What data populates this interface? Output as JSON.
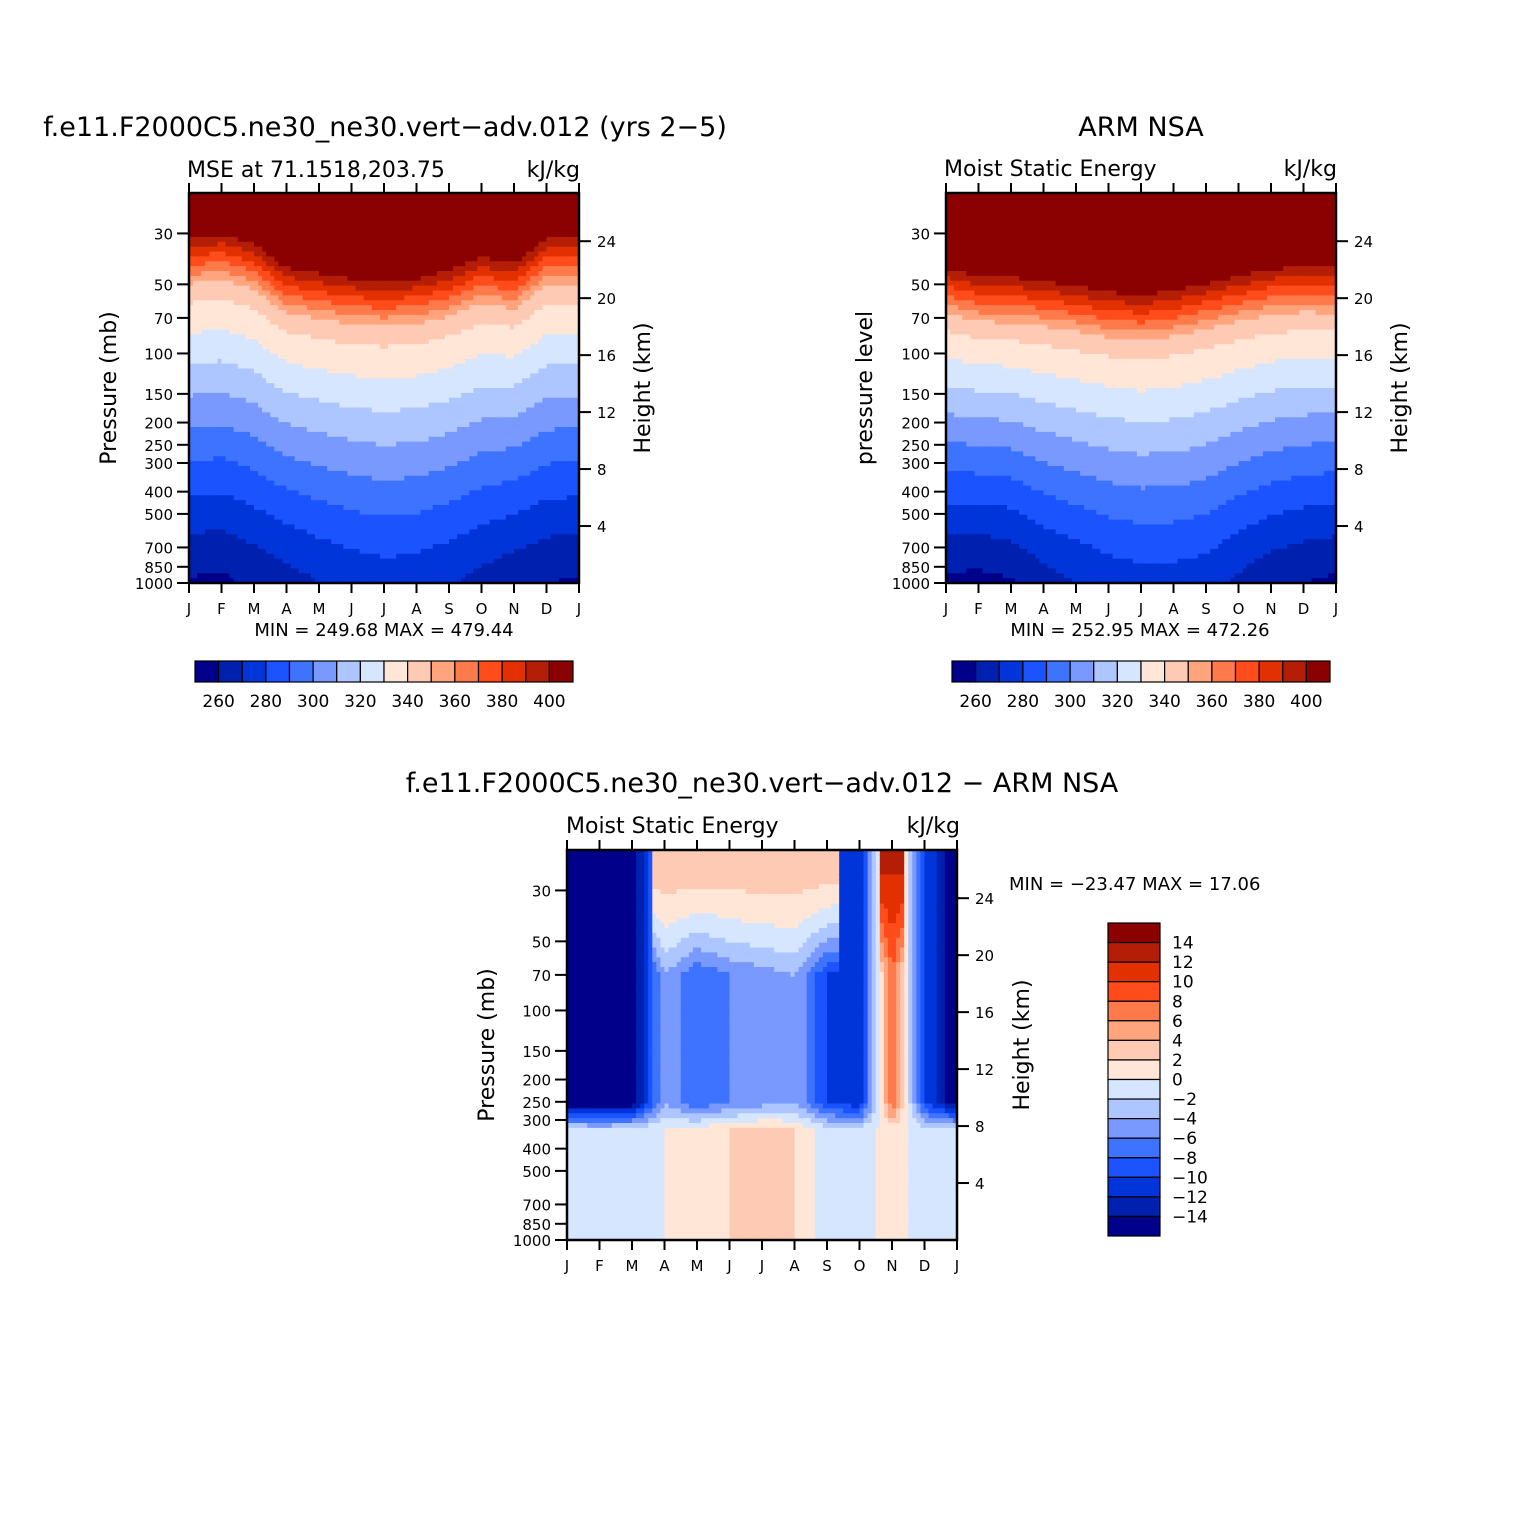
{
  "months": [
    "J",
    "F",
    "M",
    "A",
    "M",
    "J",
    "J",
    "A",
    "S",
    "O",
    "N",
    "D",
    "J"
  ],
  "pressure_ticks": [
    "30",
    "50",
    "70",
    "100",
    "150",
    "200",
    "250",
    "300",
    "400",
    "500",
    "700",
    "850",
    "1000"
  ],
  "pressure_values": [
    30,
    50,
    70,
    100,
    150,
    200,
    250,
    300,
    400,
    500,
    700,
    850,
    1000
  ],
  "height_ticks": [
    "24",
    "20",
    "16",
    "12",
    "8",
    "4"
  ],
  "height_values": [
    24,
    20,
    16,
    12,
    8,
    4
  ],
  "abs_colors": [
    "#00008b",
    "#0020b0",
    "#0035da",
    "#1a53ff",
    "#3d73ff",
    "#7999ff",
    "#adc6ff",
    "#d6e6ff",
    "#ffe6d6",
    "#ffcab3",
    "#ffa47c",
    "#ff7a4a",
    "#ff4c1a",
    "#e33000",
    "#b51e06",
    "#8b0000"
  ],
  "abs_levels": [
    255,
    260,
    270,
    280,
    290,
    300,
    310,
    320,
    330,
    340,
    350,
    360,
    370,
    380,
    390,
    400
  ],
  "abs_labels": [
    "260",
    "280",
    "300",
    "320",
    "340",
    "360",
    "380",
    "400"
  ],
  "diff_colors": [
    "#00008b",
    "#0020b0",
    "#0035da",
    "#1a53ff",
    "#3d73ff",
    "#7999ff",
    "#adc6ff",
    "#d6e6ff",
    "#ffe6d6",
    "#ffcab3",
    "#ffa47c",
    "#ff7a4a",
    "#ff4c1a",
    "#e33000",
    "#b51e06",
    "#8b0000"
  ],
  "diff_labels": [
    "14",
    "12",
    "10",
    "8",
    "6",
    "4",
    "2",
    "0",
    "−2",
    "−4",
    "−6",
    "−8",
    "−10",
    "−12",
    "−14"
  ],
  "chart_data": [
    {
      "type": "heatmap",
      "id": "model",
      "title": "f.e11.F2000C5.ne30_ne30.vert−adv.012 (yrs 2−5)",
      "left_label": "MSE at 71.1518,203.75",
      "right_label": "kJ/kg",
      "ylabel": "Pressure (mb)",
      "y2label": "Height (km)",
      "minmax": "MIN = 249.68 MAX = 479.44",
      "units": "kJ/kg",
      "mse_1000mb": [
        259,
        258,
        262,
        266,
        270,
        273,
        275,
        274,
        271,
        267,
        263,
        260,
        259
      ],
      "tropopause_p": [
        52,
        50,
        55,
        70,
        74,
        78,
        80,
        78,
        72,
        63,
        67,
        52,
        52
      ]
    },
    {
      "type": "heatmap",
      "id": "obs",
      "title": "ARM NSA",
      "left_label": "Moist Static Energy",
      "right_label": "kJ/kg",
      "ylabel": "pressure level",
      "y2label": "Height (km)",
      "minmax": "MIN = 252.95 MAX = 472.26",
      "units": "kJ/kg",
      "mse_1000mb": [
        258,
        257,
        259,
        266,
        270,
        274,
        276,
        276,
        274,
        268,
        263,
        260,
        258
      ],
      "tropopause_p": [
        70,
        76,
        77,
        80,
        84,
        89,
        92,
        88,
        82,
        76,
        71,
        69,
        70
      ]
    },
    {
      "type": "heatmap",
      "id": "diff",
      "title": "f.e11.F2000C5.ne30_ne30.vert−adv.012 − ARM NSA",
      "left_label": "Moist Static Energy",
      "right_label": "kJ/kg",
      "ylabel": "Pressure (mb)",
      "y2label": "Height (km)",
      "minmax": "MIN = −23.47 MAX =   17.06",
      "units": "kJ/kg",
      "diff_upper": [
        -16,
        -16,
        -16,
        -4,
        -8,
        -6,
        -5,
        -4,
        -10,
        -12,
        8,
        -10,
        -16
      ],
      "diff_lower": [
        -1,
        -2,
        -1,
        0,
        1,
        2,
        3,
        2,
        -1,
        -1,
        1,
        -1,
        -1
      ]
    }
  ]
}
